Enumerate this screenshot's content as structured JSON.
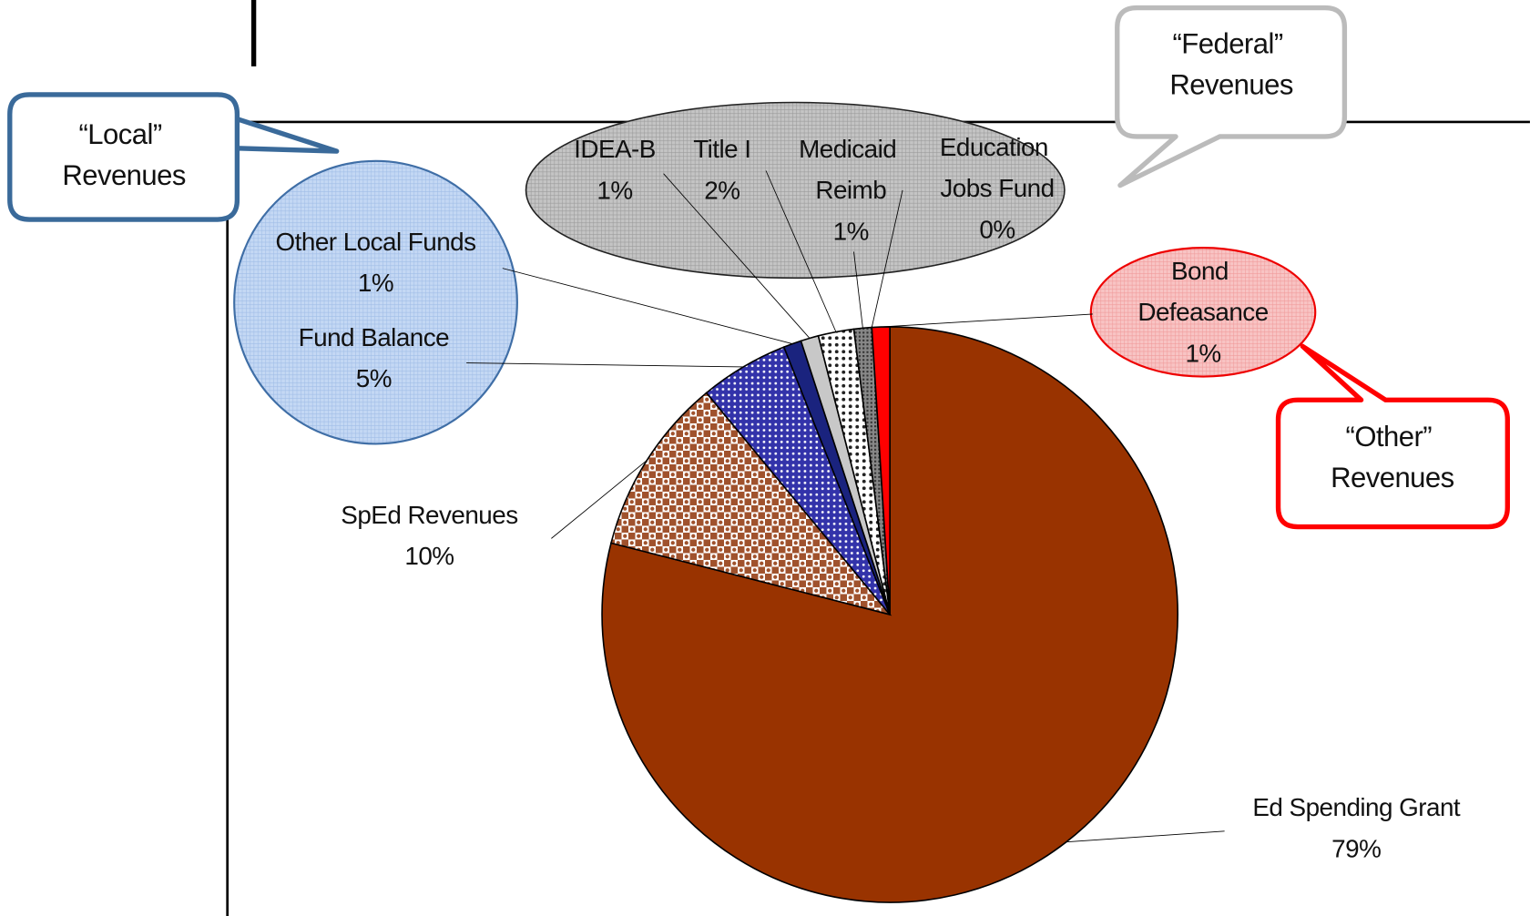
{
  "chart_data": {
    "type": "pie",
    "categories": [
      "Ed Spending Grant",
      "SpEd Revenues",
      "Fund Balance",
      "Other Local Funds",
      "IDEA-B",
      "Title I",
      "Medicaid Reimb",
      "Education Jobs Fund",
      "Bond Defeasance"
    ],
    "values": [
      79,
      10,
      5,
      1,
      1,
      2,
      1,
      0,
      1
    ],
    "value_labels": [
      "79%",
      "10%",
      "5%",
      "1%",
      "1%",
      "2%",
      "1%",
      "0%",
      "1%"
    ],
    "colors": [
      "#993300",
      "#a0522d",
      "#3333aa",
      "#1a237e",
      "#c8c8c8",
      "#222222",
      "#555555",
      "#000000",
      "#ff0000"
    ],
    "annotations": [
      "“Local” Revenues",
      "“Federal” Revenues",
      "“Other” Revenues"
    ]
  }
}
